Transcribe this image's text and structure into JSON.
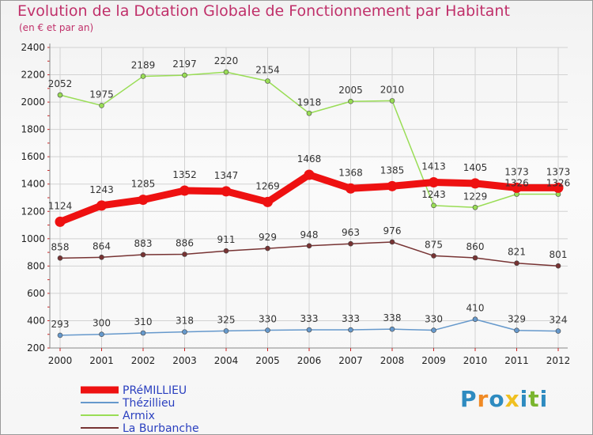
{
  "title": "Evolution de la Dotation Globale de Fonctionnement par Habitant",
  "subtitle": "(en € et par an)",
  "logo": {
    "text": "Proxiti",
    "letters": [
      "P",
      "r",
      "o",
      "x",
      "i",
      "t",
      "i"
    ],
    "colors": [
      "#2e8bc0",
      "#f08a24",
      "#2e8bc0",
      "#f0c020",
      "#2e8bc0",
      "#7ab52e",
      "#2e8bc0"
    ]
  },
  "chart_data": {
    "type": "line",
    "title": "Evolution de la Dotation Globale de Fonctionnement par Habitant",
    "subtitle": "(en € et par an)",
    "xlabel": "",
    "ylabel": "",
    "categories": [
      "2000",
      "2001",
      "2002",
      "2003",
      "2004",
      "2005",
      "2006",
      "2007",
      "2008",
      "2009",
      "2010",
      "2011",
      "2012"
    ],
    "ylim": [
      200,
      2400
    ],
    "yticks": [
      200,
      400,
      600,
      800,
      1000,
      1200,
      1400,
      1600,
      1800,
      2000,
      2200,
      2400
    ],
    "legend_position": "bottom-left",
    "series": [
      {
        "name": "PRéMILLIEU",
        "color": "#ee1111",
        "style": "thick",
        "values": [
          1124,
          1243,
          1285,
          1352,
          1347,
          1269,
          1468,
          1368,
          1385,
          1413,
          1405,
          1373,
          1373
        ]
      },
      {
        "name": "Thézillieu",
        "color": "#6699cc",
        "style": "thin",
        "values": [
          293,
          300,
          310,
          318,
          325,
          330,
          333,
          333,
          338,
          330,
          410,
          329,
          324
        ]
      },
      {
        "name": "Armix",
        "color": "#99dd55",
        "style": "thin",
        "values": [
          2052,
          1975,
          2189,
          2197,
          2220,
          2154,
          1918,
          2005,
          2010,
          1243,
          1229,
          1326,
          1326
        ]
      },
      {
        "name": "La Burbanche",
        "color": "#773333",
        "style": "thin",
        "values": [
          858,
          864,
          883,
          886,
          911,
          929,
          948,
          963,
          976,
          875,
          860,
          821,
          801
        ]
      }
    ]
  }
}
